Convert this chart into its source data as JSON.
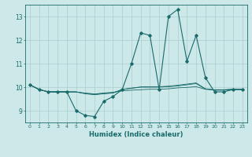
{
  "xlabel": "Humidex (Indice chaleur)",
  "background_color": "#cce8e8",
  "grid_color": "#aacece",
  "line_color": "#1a6b6b",
  "xlim": [
    -0.5,
    23.5
  ],
  "ylim": [
    8.5,
    13.5
  ],
  "yticks": [
    9,
    10,
    11,
    12,
    13
  ],
  "xticks": [
    0,
    1,
    2,
    3,
    4,
    5,
    6,
    7,
    8,
    9,
    10,
    11,
    12,
    13,
    14,
    15,
    16,
    17,
    18,
    19,
    20,
    21,
    22,
    23
  ],
  "lines": [
    [
      10.1,
      9.9,
      9.8,
      9.8,
      9.8,
      9.0,
      8.8,
      8.75,
      9.4,
      9.6,
      9.9,
      11.0,
      12.3,
      12.2,
      9.9,
      13.0,
      13.3,
      11.1,
      12.2,
      10.4,
      9.8,
      9.8,
      9.9,
      9.9
    ],
    [
      10.1,
      9.9,
      9.8,
      9.8,
      9.8,
      9.8,
      9.72,
      9.68,
      9.72,
      9.75,
      9.9,
      9.95,
      10.0,
      10.0,
      10.0,
      10.02,
      10.05,
      10.1,
      10.15,
      9.92,
      9.87,
      9.87,
      9.9,
      9.9
    ],
    [
      10.1,
      9.9,
      9.8,
      9.8,
      9.8,
      9.8,
      9.73,
      9.69,
      9.73,
      9.76,
      9.9,
      9.96,
      10.01,
      10.02,
      10.02,
      10.04,
      10.08,
      10.13,
      10.18,
      9.93,
      9.88,
      9.88,
      9.91,
      9.91
    ],
    [
      10.1,
      9.9,
      9.8,
      9.8,
      9.8,
      9.79,
      9.75,
      9.71,
      9.75,
      9.78,
      9.84,
      9.87,
      9.89,
      9.91,
      9.91,
      9.93,
      9.97,
      9.99,
      10.02,
      9.91,
      9.89,
      9.89,
      9.91,
      9.91
    ]
  ]
}
